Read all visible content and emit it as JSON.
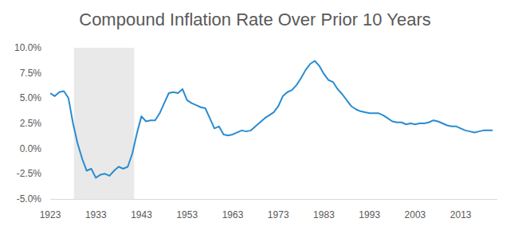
{
  "chart_data": {
    "type": "line",
    "title": "Compound Inflation Rate Over Prior 10 Years",
    "color": "#2a8ccf",
    "grid": false,
    "x": [
      1923,
      1924,
      1925,
      1926,
      1927,
      1928,
      1929,
      1930,
      1931,
      1932,
      1933,
      1934,
      1935,
      1936,
      1937,
      1938,
      1939,
      1940,
      1941,
      1942,
      1943,
      1944,
      1945,
      1946,
      1947,
      1948,
      1949,
      1950,
      1951,
      1952,
      1953,
      1954,
      1955,
      1956,
      1957,
      1958,
      1959,
      1960,
      1961,
      1962,
      1963,
      1964,
      1965,
      1966,
      1967,
      1968,
      1969,
      1970,
      1971,
      1972,
      1973,
      1974,
      1975,
      1976,
      1977,
      1978,
      1979,
      1980,
      1981,
      1982,
      1983,
      1984,
      1985,
      1986,
      1987,
      1988,
      1989,
      1990,
      1991,
      1992,
      1993,
      1994,
      1995,
      1996,
      1997,
      1998,
      1999,
      2000,
      2001,
      2002,
      2003,
      2004,
      2005,
      2006,
      2007,
      2008,
      2009,
      2010,
      2011,
      2012,
      2013,
      2014,
      2015,
      2016,
      2017,
      2018,
      2019,
      2020
    ],
    "values": [
      5.5,
      5.2,
      5.6,
      5.7,
      5.0,
      2.5,
      0.5,
      -1.0,
      -2.2,
      -2.0,
      -2.9,
      -2.6,
      -2.5,
      -2.7,
      -2.2,
      -1.8,
      -2.0,
      -1.8,
      -0.5,
      1.5,
      3.2,
      2.7,
      2.8,
      2.8,
      3.5,
      4.5,
      5.5,
      5.6,
      5.5,
      5.9,
      4.8,
      4.5,
      4.3,
      4.1,
      4.0,
      3.0,
      2.0,
      2.2,
      1.4,
      1.3,
      1.4,
      1.6,
      1.8,
      1.7,
      1.8,
      2.2,
      2.6,
      3.0,
      3.3,
      3.6,
      4.2,
      5.2,
      5.6,
      5.8,
      6.3,
      7.0,
      7.8,
      8.4,
      8.7,
      8.2,
      7.4,
      6.8,
      6.6,
      5.9,
      5.4,
      4.8,
      4.2,
      3.9,
      3.7,
      3.6,
      3.5,
      3.5,
      3.5,
      3.3,
      3.0,
      2.7,
      2.6,
      2.6,
      2.4,
      2.5,
      2.4,
      2.5,
      2.5,
      2.6,
      2.8,
      2.7,
      2.5,
      2.3,
      2.2,
      2.2,
      2.0,
      1.8,
      1.7,
      1.6,
      1.7,
      1.8,
      1.8,
      1.8
    ],
    "highlight": [
      1928.2,
      1941.4
    ],
    "xlim": [
      1923,
      2021
    ],
    "xticks": [
      1923,
      1933,
      1943,
      1953,
      1963,
      1973,
      1983,
      1993,
      2003,
      2013
    ],
    "ylim": [
      -5,
      10
    ],
    "yticks": [
      {
        "value": -5,
        "label": "-5.0%"
      },
      {
        "value": -2.5,
        "label": "-2.5%"
      },
      {
        "value": 0,
        "label": "0.0%"
      },
      {
        "value": 2.5,
        "label": "2.5%"
      },
      {
        "value": 5,
        "label": "5.0%"
      },
      {
        "value": 7.5,
        "label": "7.5%"
      },
      {
        "value": 10,
        "label": "10.0%"
      }
    ]
  }
}
